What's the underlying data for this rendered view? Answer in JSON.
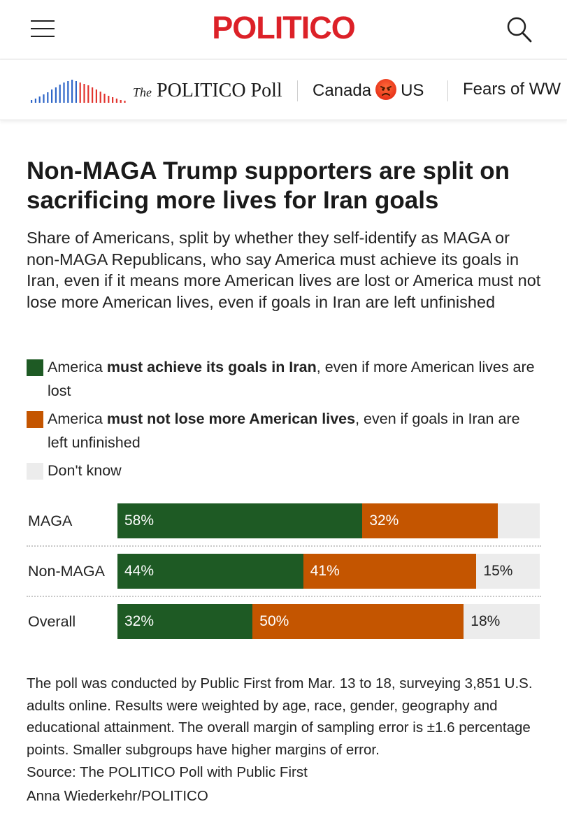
{
  "header": {
    "logo_text": "POLITICO",
    "brand_color": "#dc2128",
    "menu_icon": "hamburger-menu-icon",
    "search_icon": "search-icon"
  },
  "subnav": {
    "poll_logo_the": "The",
    "poll_logo_name": "POLITICO Poll",
    "links": [
      {
        "left": "Canada",
        "emoji": "angry-face-icon",
        "right": "US"
      },
      {
        "label": "Fears of WW"
      }
    ]
  },
  "title": "Non-MAGA Trump supporters are split on sacrificing more lives for Iran goals",
  "subtitle": "Share of Americans, split by whether they self-identify as MAGA or non-MAGA Republicans, who say America must achieve its goals in Iran, even if it means more American lives are lost or America must not lose more American lives, even if goals in Iran are left unfinished",
  "colors": {
    "achieve": "#1e5a24",
    "not_lose": "#c45500",
    "dont_know": "#ececec"
  },
  "legend": [
    {
      "pre": "America ",
      "bold": "must achieve its goals in Iran",
      "post": ", even if more American lives are lost"
    },
    {
      "pre": "America ",
      "bold": "must not lose more American lives",
      "post": ", even if goals in Iran are left unfinished"
    },
    {
      "pre": "Don't know",
      "bold": "",
      "post": ""
    }
  ],
  "chart_data": {
    "type": "bar",
    "orientation": "horizontal",
    "stacked": true,
    "categories": [
      "MAGA",
      "Non-MAGA",
      "Overall"
    ],
    "series": [
      {
        "name": "America must achieve its goals in Iran, even if more American lives are lost",
        "values": [
          58,
          44,
          32
        ],
        "labels": [
          "58%",
          "44%",
          "32%"
        ]
      },
      {
        "name": "America must not lose more American lives, even if goals in Iran are left unfinished",
        "values": [
          32,
          41,
          50
        ],
        "labels": [
          "32%",
          "41%",
          "50%"
        ]
      },
      {
        "name": "Don't know",
        "values": [
          10,
          15,
          18
        ],
        "labels": [
          "",
          "15%",
          "18%"
        ]
      }
    ],
    "xlim": [
      0,
      100
    ],
    "grid": false
  },
  "notes": {
    "method": "The poll was conducted by Public First from Mar. 13 to 18, surveying 3,851 U.S. adults online. Results were weighted by age, race, gender, geography and educational attainment. The overall margin of sampling error is ±1.6 percentage points. Smaller subgroups have higher margins of error.",
    "source": "Source: The POLITICO Poll with Public First",
    "credit": "Anna Wiederkehr/POLITICO"
  }
}
